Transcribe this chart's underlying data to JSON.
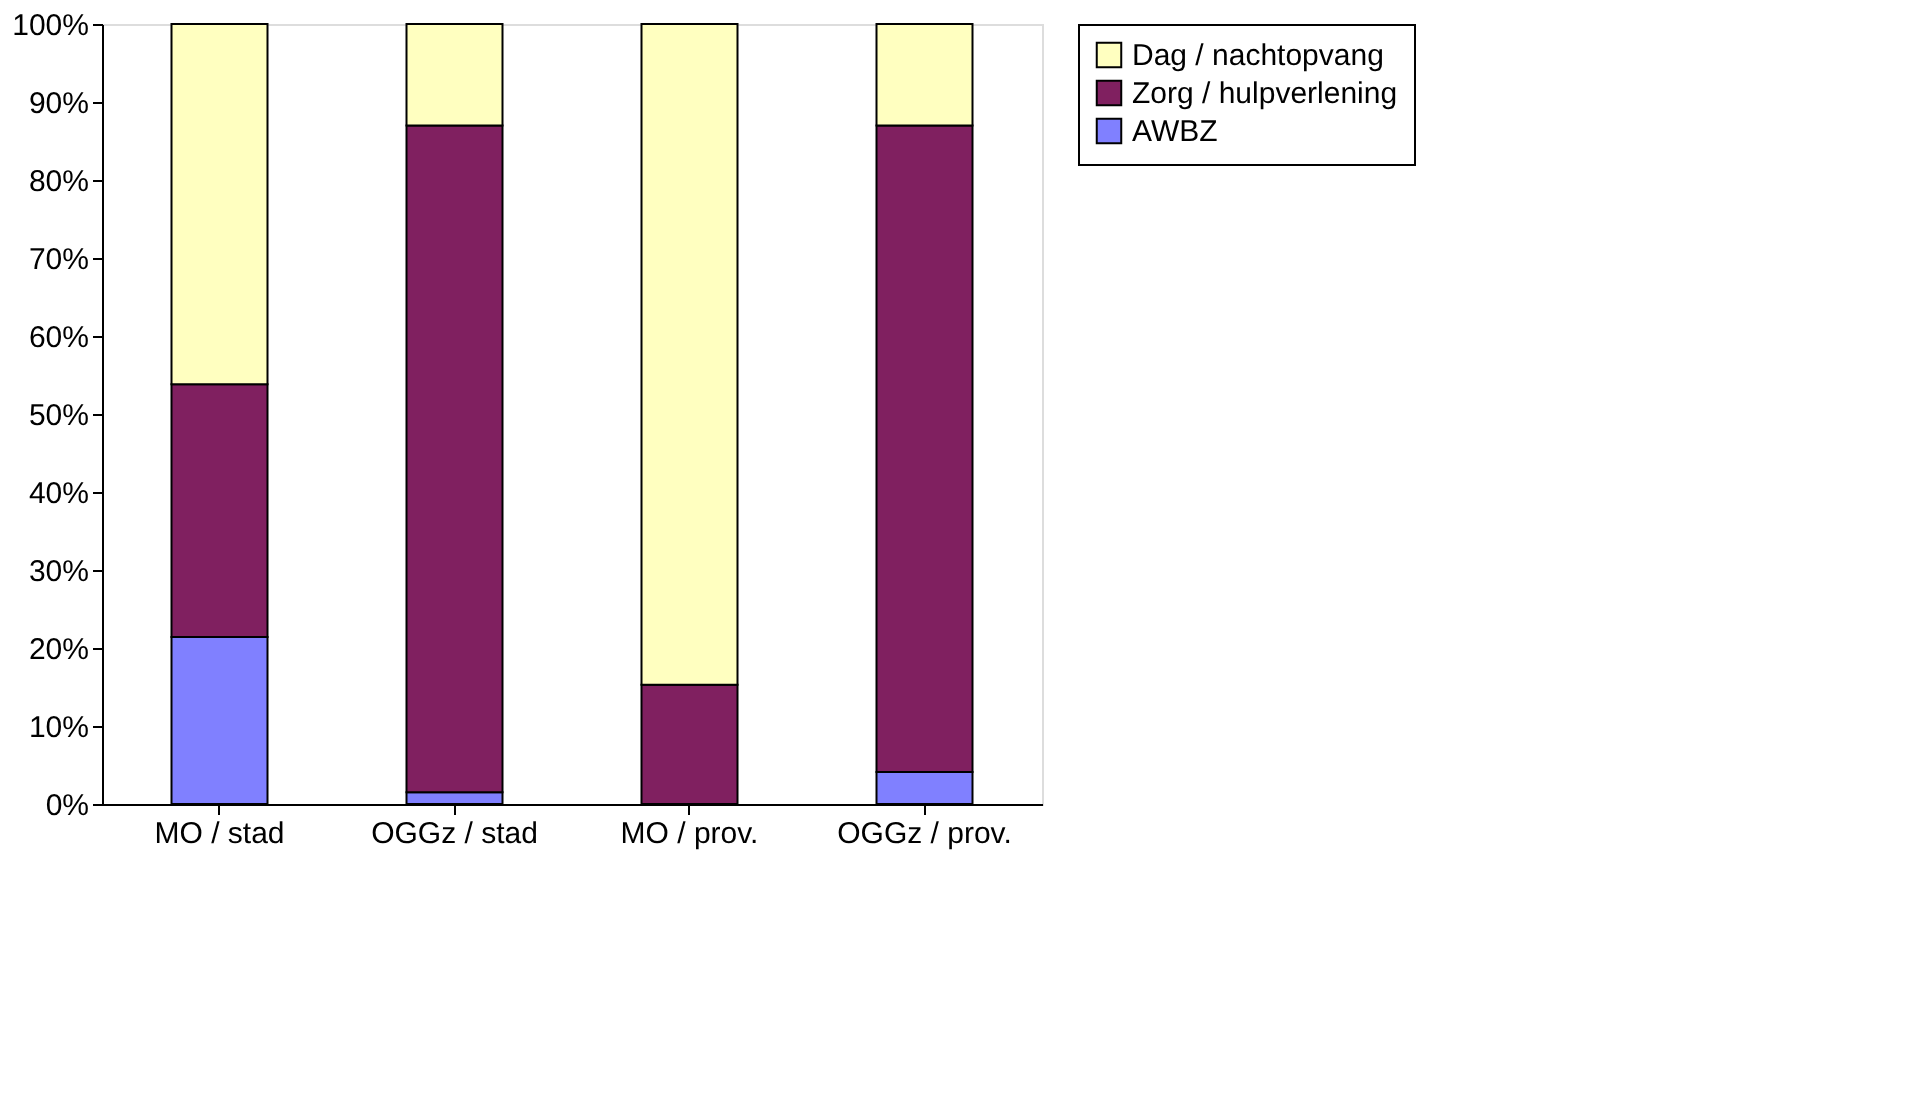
{
  "chart_data": {
    "type": "bar",
    "stacked": true,
    "categories": [
      "MO / stad",
      "OGGz / stad",
      "MO / prov.",
      "OGGz / prov."
    ],
    "series": [
      {
        "name": "AWBZ",
        "color": "#8080ff",
        "values": [
          21.4,
          1.5,
          0,
          4.1
        ]
      },
      {
        "name": "Zorg / hulpverlening",
        "color": "#802060",
        "values": [
          32.4,
          85.5,
          15.3,
          82.9
        ]
      },
      {
        "name": "Dag / nachtopvang",
        "color": "#ffffc0",
        "values": [
          46.2,
          13,
          84.7,
          13
        ]
      }
    ],
    "ylim": [
      0,
      100
    ],
    "yticks": [
      {
        "value": 0,
        "label": "0%"
      },
      {
        "value": 10,
        "label": "10%"
      },
      {
        "value": 20,
        "label": "20%"
      },
      {
        "value": 30,
        "label": "30%"
      },
      {
        "value": 40,
        "label": "40%"
      },
      {
        "value": 50,
        "label": "50%"
      },
      {
        "value": 60,
        "label": "60%"
      },
      {
        "value": 70,
        "label": "70%"
      },
      {
        "value": 80,
        "label": "80%"
      },
      {
        "value": 90,
        "label": "90%"
      },
      {
        "value": 100,
        "label": "100%"
      }
    ],
    "grid": false,
    "legend": "right"
  }
}
